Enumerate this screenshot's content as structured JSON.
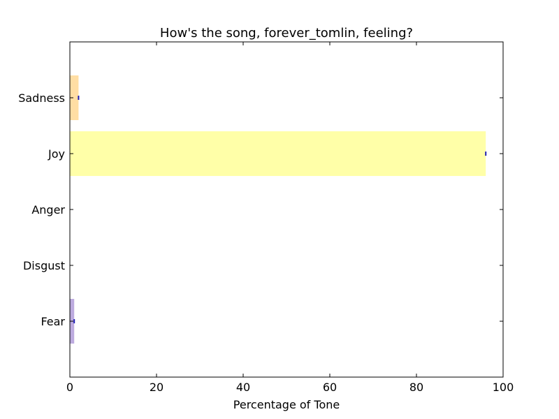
{
  "chart_data": {
    "type": "bar",
    "orientation": "horizontal",
    "title": "How's the song, forever_tomlin, feeling?",
    "xlabel": "Percentage of Tone",
    "ylabel": "",
    "xlim": [
      0,
      100
    ],
    "xticks": [
      "0",
      "20",
      "40",
      "60",
      "80",
      "100"
    ],
    "grid": false,
    "categories": [
      "Fear",
      "Disgust",
      "Anger",
      "Joy",
      "Sadness"
    ],
    "values": [
      1.0,
      0.0,
      0.0,
      96.0,
      2.0
    ],
    "colors": [
      "#b19cd9",
      "#90ee90",
      "#ff6961",
      "#ffff99",
      "#ffd894"
    ]
  }
}
